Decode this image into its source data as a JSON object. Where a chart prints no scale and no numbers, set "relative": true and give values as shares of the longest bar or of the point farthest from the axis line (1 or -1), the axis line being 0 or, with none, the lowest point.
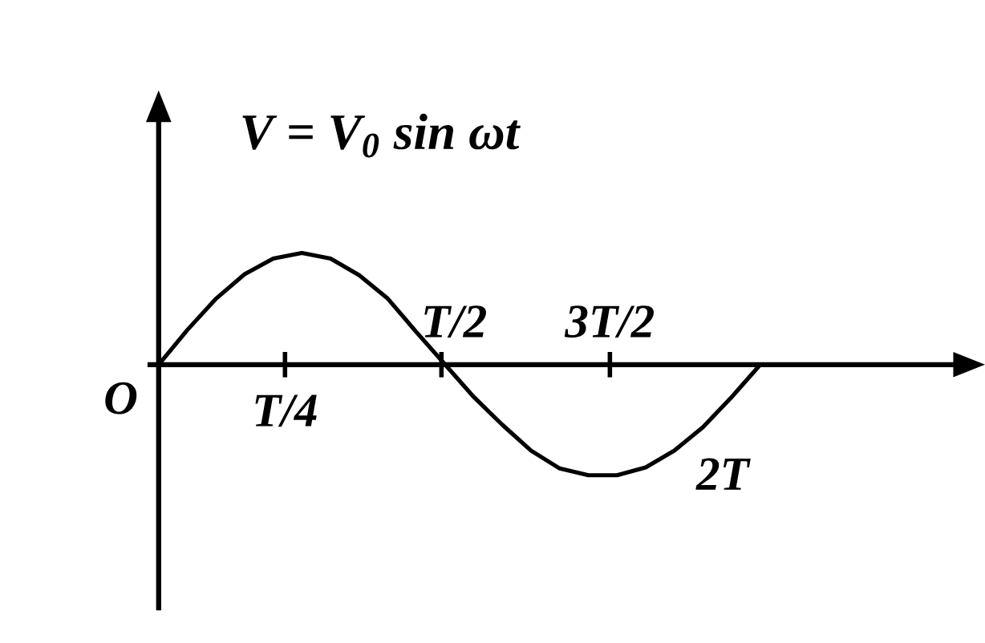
{
  "chart_data": {
    "type": "line",
    "title": "V = V$_{0}$ sin ωt",
    "categories": [
      null,
      null,
      null,
      null,
      null,
      null,
      null,
      null,
      null,
      null,
      null,
      null,
      null,
      null,
      null,
      null,
      null,
      null,
      null,
      null,
      null,
      null
    ],
    "values": [
      0,
      0.31,
      0.59,
      0.81,
      0.95,
      1,
      0.95,
      0.8,
      0.59,
      0.29,
      0,
      -0.29,
      -0.54,
      -0.77,
      -0.93,
      -0.99,
      -0.99,
      -0.92,
      -0.77,
      -0.56,
      -0.29,
      0
    ],
    "color": "#000000",
    "relative": true,
    "annotations": [
      "O",
      "T/4",
      "T/2",
      "3T/2",
      "2T"
    ]
  }
}
